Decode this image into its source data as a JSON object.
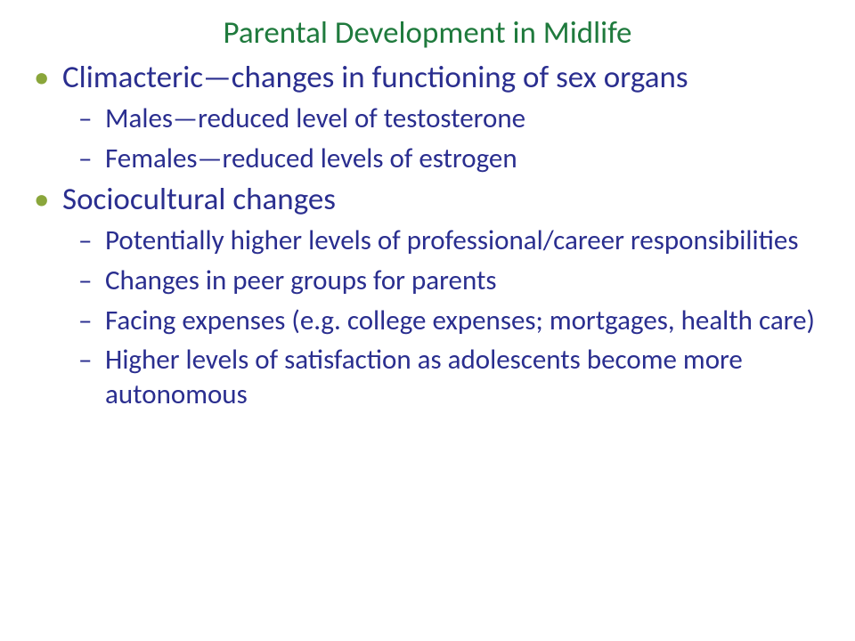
{
  "colors": {
    "title": "#1f7a3d",
    "level1_bullet": "#8aa63b",
    "level1_text": "#2a2e8f",
    "level2_text": "#2a2e8f"
  },
  "typography": {
    "title_fontsize": 35,
    "level1_fontsize": 35,
    "level2_fontsize": 31,
    "font_family": "Calibri"
  },
  "slide": {
    "title": "Parental Development in Midlife",
    "items": [
      {
        "text": "Climacteric—changes in functioning of sex organs",
        "children": [
          {
            "text": "Males—reduced level of testosterone"
          },
          {
            "text": "Females—reduced levels of estrogen"
          }
        ]
      },
      {
        "text": "Sociocultural changes",
        "children": [
          {
            "text": "Potentially higher levels of professional/career responsibilities"
          },
          {
            "text": "Changes in peer groups for parents"
          },
          {
            "text": "Facing expenses (e.g. college expenses; mortgages, health care)"
          },
          {
            "text": "Higher levels of satisfaction as adolescents become more autonomous"
          }
        ]
      }
    ]
  }
}
